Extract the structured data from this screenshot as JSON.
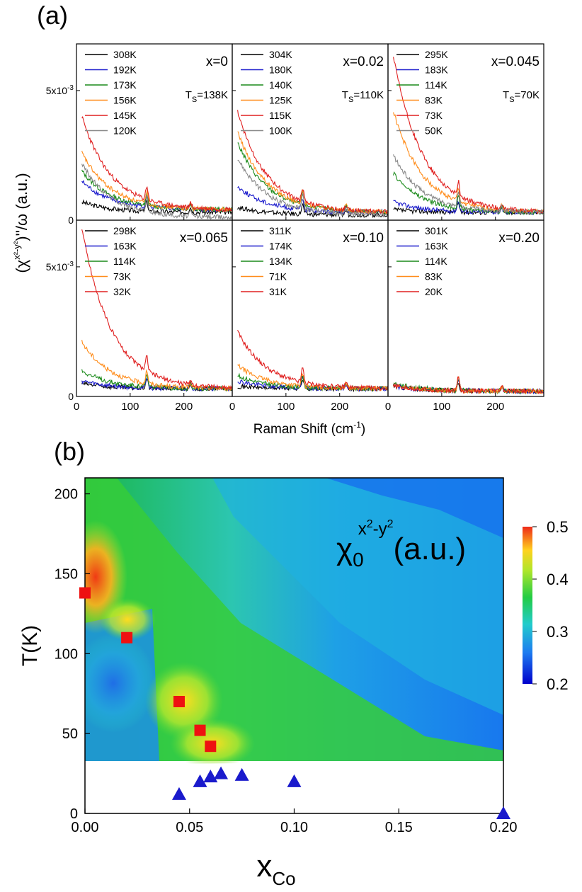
{
  "panel_a": {
    "label": "(a)",
    "ylabel": "(χx²-y²)''/ω (a.u.)",
    "ylabel_parts": {
      "chi": "(χ",
      "sup": "x²-y²",
      "rest": ")''/ω (a.u.)"
    },
    "xlabel": "Raman  Shift (cm⁻¹)",
    "xlabel_parts": {
      "main": "Raman  Shift (cm",
      "sup": "-1",
      "end": ")"
    },
    "y_ticks": [
      "0",
      "5x10⁻³"
    ],
    "y_tick_parts": {
      "base": "5x10",
      "sup": "-3"
    },
    "x_ticks": [
      "0",
      "100",
      "200"
    ]
  },
  "panel_b": {
    "label": "(b)",
    "ylabel": "T(K)",
    "xlabel": "x",
    "xlabel_sub": "Co",
    "map_label": {
      "chi": "χ",
      "sub": "0",
      "sup": "x²-y²",
      "sup_text": "x",
      "sup2": "2",
      "sup_minus": "-y",
      "sup3": "2",
      "unit": "(a.u.)"
    },
    "colorbar_ticks": [
      "0.5",
      "0.4",
      "0.3",
      "0.2"
    ]
  },
  "chart_data": [
    {
      "type": "line",
      "title": "",
      "xlabel": "Raman  Shift (cm-1)",
      "ylabel": "(χx²-y²)''/ω (a.u.)",
      "xlim": [
        0,
        290
      ],
      "ylim": [
        0,
        0.0068
      ],
      "grid": false,
      "colors": [
        "#000000",
        "#1a1acc",
        "#1a8a1a",
        "#ff8c1a",
        "#e02020",
        "#888888"
      ],
      "panels": [
        {
          "x_label": "x=0",
          "ts_label": "T",
          "ts_sub": "S",
          "ts_value": "=138K",
          "legend": [
            "308K",
            "192K",
            "173K",
            "156K",
            "145K",
            "120K"
          ],
          "base": [
            0.0007,
            0.0015,
            0.0019,
            0.0026,
            0.004,
            0.0022
          ],
          "tail": [
            0.0003,
            0.0004,
            0.0004,
            0.0004,
            0.0004,
            0.0001
          ]
        },
        {
          "x_label": "x=0.02",
          "ts_label": "T",
          "ts_sub": "S",
          "ts_value": "=110K",
          "legend": [
            "304K",
            "180K",
            "140K",
            "125K",
            "115K",
            "100K"
          ],
          "base": [
            0.0005,
            0.0013,
            0.003,
            0.0034,
            0.0042,
            0.0024
          ],
          "tail": [
            0.0002,
            0.0003,
            0.0003,
            0.0003,
            0.0003,
            0.0002
          ]
        },
        {
          "x_label": "x=0.045",
          "ts_label": "T",
          "ts_sub": "S",
          "ts_value": "=70K",
          "legend": [
            "295K",
            "183K",
            "114K",
            "83K",
            "73K",
            "50K"
          ],
          "base": [
            0.0004,
            0.0007,
            0.0018,
            0.0042,
            0.0063,
            0.0025
          ],
          "tail": [
            0.0003,
            0.0003,
            0.0003,
            0.0003,
            0.0003,
            0.0003
          ]
        },
        {
          "x_label": "x=0.065",
          "legend": [
            "298K",
            "163K",
            "114K",
            "73K",
            "32K"
          ],
          "base": [
            0.0005,
            0.0006,
            0.001,
            0.0021,
            0.0065
          ],
          "tail": [
            0.0003,
            0.0003,
            0.0003,
            0.0003,
            0.0003
          ]
        },
        {
          "x_label": "x=0.10",
          "legend": [
            "311K",
            "174K",
            "134K",
            "71K",
            "31K"
          ],
          "base": [
            0.0004,
            0.0006,
            0.0008,
            0.0012,
            0.0025
          ],
          "tail": [
            0.0003,
            0.0003,
            0.0003,
            0.0003,
            0.0003
          ]
        },
        {
          "x_label": "x=0.20",
          "legend": [
            "301K",
            "163K",
            "114K",
            "83K",
            "20K"
          ],
          "base": [
            0.0004,
            0.0004,
            0.0005,
            0.0004,
            0.0004
          ],
          "tail": [
            0.0002,
            0.0002,
            0.0002,
            0.0002,
            0.0002
          ]
        }
      ]
    },
    {
      "type": "heatmap",
      "title": "",
      "xlabel": "xCo",
      "ylabel": "T(K)",
      "xlim": [
        0.0,
        0.2
      ],
      "ylim": [
        0,
        210
      ],
      "x_ticks": [
        "0.00",
        "0.05",
        "0.10",
        "0.15",
        "0.20"
      ],
      "y_ticks": [
        "0",
        "50",
        "100",
        "150",
        "200"
      ],
      "colorbar": {
        "range": [
          0.2,
          0.5
        ],
        "ticks": [
          "0.5",
          "0.4",
          "0.3",
          "0.2"
        ]
      },
      "series": [
        {
          "marker": "square",
          "color": "#ee1111",
          "x": [
            0.0,
            0.02,
            0.045,
            0.055,
            0.06
          ],
          "y": [
            138,
            110,
            70,
            52,
            42
          ]
        },
        {
          "marker": "triangle",
          "color": "#1a1acc",
          "x": [
            0.045,
            0.055,
            0.06,
            0.065,
            0.075,
            0.1,
            0.2
          ],
          "y": [
            12,
            20,
            23,
            25,
            24,
            20,
            0
          ]
        }
      ]
    }
  ]
}
